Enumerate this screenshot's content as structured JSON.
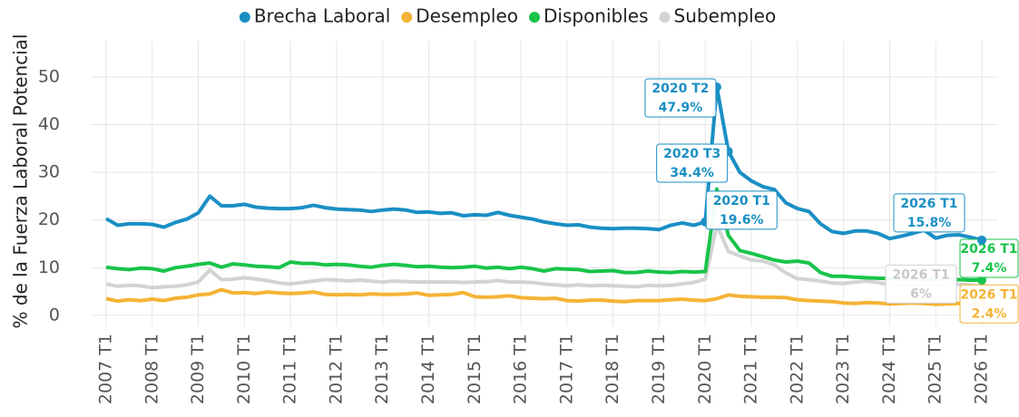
{
  "chart_data": {
    "type": "line",
    "y_label": "% de la Fuerza Laboral Potencial",
    "categories": [
      "2007 T1",
      null,
      null,
      null,
      "2008 T1",
      null,
      null,
      null,
      "2009 T1",
      null,
      null,
      null,
      "2010 T1",
      null,
      null,
      null,
      "2011 T1",
      null,
      null,
      null,
      "2012 T1",
      null,
      null,
      null,
      "2013 T1",
      null,
      null,
      null,
      "2014 T1",
      null,
      null,
      null,
      "2015 T1",
      null,
      null,
      null,
      "2016 T1",
      null,
      null,
      null,
      "2017 T1",
      null,
      null,
      null,
      "2018 T1",
      null,
      null,
      null,
      "2019 T1",
      null,
      null,
      null,
      "2020 T1",
      null,
      null,
      null,
      "2021 T1",
      null,
      null,
      null,
      "2022 T1",
      null,
      null,
      null,
      "2023 T1",
      null,
      null,
      null,
      "2024 T1",
      null,
      null,
      null,
      "2025 T1",
      null,
      null,
      null,
      "2026 T1"
    ],
    "ylim": [
      -2.3,
      57.6
    ],
    "yticks": [
      0,
      10,
      20,
      30,
      40,
      50
    ],
    "grid": true,
    "legend": "top",
    "series": [
      {
        "name": "Brecha Laboral",
        "color": "#1a8fc4",
        "values": [
          20.3,
          18.9,
          19.2,
          19.2,
          19.1,
          18.5,
          19.5,
          20.2,
          21.5,
          25,
          23,
          23,
          23.3,
          22.7,
          22.5,
          22.4,
          22.4,
          22.6,
          23.1,
          22.6,
          22.3,
          22.2,
          22.1,
          21.8,
          22.1,
          22.3,
          22.1,
          21.6,
          21.7,
          21.4,
          21.5,
          20.9,
          21.1,
          21.0,
          21.6,
          21.0,
          20.6,
          20.2,
          19.6,
          19.2,
          18.9,
          19.0,
          18.5,
          18.3,
          18.2,
          18.3,
          18.3,
          18.2,
          18.0,
          18.9,
          19.4,
          18.9,
          19.6,
          47.9,
          34.4,
          30.0,
          28.2,
          27.0,
          26.4,
          23.6,
          22.4,
          21.8,
          19.2,
          17.6,
          17.2,
          17.7,
          17.7,
          17.2,
          16.1,
          16.6,
          17.2,
          17.9,
          16.2,
          16.8,
          16.9,
          16.4,
          15.8
        ],
        "point_labels": [
          null,
          null,
          null,
          null,
          null,
          null,
          null,
          null,
          null,
          null,
          null,
          null,
          null,
          null,
          null,
          null,
          null,
          null,
          null,
          null,
          null,
          null,
          null,
          null,
          null,
          null,
          null,
          null,
          null,
          null,
          null,
          null,
          null,
          null,
          null,
          null,
          null,
          null,
          null,
          null,
          null,
          null,
          null,
          null,
          null,
          null,
          null,
          null,
          null,
          null,
          null,
          null,
          "2020 T1",
          "2020 T2",
          "2020 T3",
          null,
          null,
          null,
          null,
          null,
          null,
          null,
          null,
          null,
          null,
          null,
          null,
          null,
          null,
          null,
          null,
          null,
          null,
          null,
          null,
          null,
          "2026 T1"
        ],
        "value_labels": [
          null,
          null,
          null,
          null,
          null,
          null,
          null,
          null,
          null,
          null,
          null,
          null,
          null,
          null,
          null,
          null,
          null,
          null,
          null,
          null,
          null,
          null,
          null,
          null,
          null,
          null,
          null,
          null,
          null,
          null,
          null,
          null,
          null,
          null,
          null,
          null,
          null,
          null,
          null,
          null,
          null,
          null,
          null,
          null,
          null,
          null,
          null,
          null,
          null,
          null,
          null,
          null,
          "19.6%",
          "47.9%",
          "34.4%",
          null,
          null,
          null,
          null,
          null,
          null,
          null,
          null,
          null,
          null,
          null,
          null,
          null,
          null,
          null,
          null,
          null,
          null,
          null,
          null,
          null,
          "15.8%"
        ]
      },
      {
        "name": "Desempleo",
        "color": "#f5b335",
        "values": [
          3.5,
          3.0,
          3.3,
          3.1,
          3.4,
          3.1,
          3.6,
          3.8,
          4.3,
          4.5,
          5.4,
          4.7,
          4.8,
          4.6,
          4.9,
          4.7,
          4.6,
          4.7,
          4.9,
          4.4,
          4.3,
          4.4,
          4.3,
          4.5,
          4.4,
          4.4,
          4.5,
          4.7,
          4.2,
          4.3,
          4.4,
          4.8,
          3.9,
          3.8,
          3.9,
          4.1,
          3.7,
          3.6,
          3.5,
          3.6,
          3.1,
          3.0,
          3.2,
          3.2,
          3.0,
          2.9,
          3.1,
          3.1,
          3.1,
          3.3,
          3.4,
          3.2,
          3.1,
          3.5,
          4.3,
          4.0,
          3.9,
          3.8,
          3.8,
          3.7,
          3.3,
          3.1,
          3.0,
          2.9,
          2.6,
          2.5,
          2.7,
          2.6,
          2.4,
          2.5,
          2.6,
          2.5,
          2.3,
          2.4,
          2.5,
          2.5,
          2.4
        ],
        "point_labels": [
          null,
          null,
          null,
          null,
          null,
          null,
          null,
          null,
          null,
          null,
          null,
          null,
          null,
          null,
          null,
          null,
          null,
          null,
          null,
          null,
          null,
          null,
          null,
          null,
          null,
          null,
          null,
          null,
          null,
          null,
          null,
          null,
          null,
          null,
          null,
          null,
          null,
          null,
          null,
          null,
          null,
          null,
          null,
          null,
          null,
          null,
          null,
          null,
          null,
          null,
          null,
          null,
          null,
          null,
          null,
          null,
          null,
          null,
          null,
          null,
          null,
          null,
          null,
          null,
          null,
          null,
          null,
          null,
          null,
          null,
          null,
          null,
          null,
          null,
          null,
          null,
          "2026 T1"
        ],
        "value_labels": [
          null,
          null,
          null,
          null,
          null,
          null,
          null,
          null,
          null,
          null,
          null,
          null,
          null,
          null,
          null,
          null,
          null,
          null,
          null,
          null,
          null,
          null,
          null,
          null,
          null,
          null,
          null,
          null,
          null,
          null,
          null,
          null,
          null,
          null,
          null,
          null,
          null,
          null,
          null,
          null,
          null,
          null,
          null,
          null,
          null,
          null,
          null,
          null,
          null,
          null,
          null,
          null,
          null,
          null,
          null,
          null,
          null,
          null,
          null,
          null,
          null,
          null,
          null,
          null,
          null,
          null,
          null,
          null,
          null,
          null,
          null,
          null,
          null,
          null,
          null,
          null,
          "2.4%"
        ]
      },
      {
        "name": "Disponibles",
        "color": "#18c44a",
        "values": [
          10.1,
          9.8,
          9.6,
          9.9,
          9.8,
          9.3,
          10.0,
          10.3,
          10.7,
          11.0,
          10.1,
          10.8,
          10.6,
          10.3,
          10.2,
          10.0,
          11.2,
          10.9,
          10.9,
          10.6,
          10.7,
          10.6,
          10.3,
          10.1,
          10.5,
          10.7,
          10.5,
          10.2,
          10.3,
          10.1,
          10.0,
          10.1,
          10.3,
          9.9,
          10.1,
          9.8,
          10.1,
          9.8,
          9.3,
          9.8,
          9.7,
          9.6,
          9.2,
          9.3,
          9.4,
          9.0,
          9.0,
          9.3,
          9.1,
          9.0,
          9.2,
          9.1,
          9.2,
          26.5,
          16.8,
          13.6,
          13.0,
          12.3,
          11.6,
          11.2,
          11.4,
          11.0,
          9.0,
          8.2,
          8.2,
          8.0,
          7.9,
          7.8,
          7.7,
          7.6,
          7.6,
          7.5,
          7.5,
          7.6,
          7.5,
          7.4,
          7.4
        ],
        "point_labels": [
          null,
          null,
          null,
          null,
          null,
          null,
          null,
          null,
          null,
          null,
          null,
          null,
          null,
          null,
          null,
          null,
          null,
          null,
          null,
          null,
          null,
          null,
          null,
          null,
          null,
          null,
          null,
          null,
          null,
          null,
          null,
          null,
          null,
          null,
          null,
          null,
          null,
          null,
          null,
          null,
          null,
          null,
          null,
          null,
          null,
          null,
          null,
          null,
          null,
          null,
          null,
          null,
          null,
          null,
          null,
          null,
          null,
          null,
          null,
          null,
          null,
          null,
          null,
          null,
          null,
          null,
          null,
          null,
          null,
          null,
          null,
          null,
          null,
          null,
          null,
          null,
          "2026 T1"
        ],
        "value_labels": [
          null,
          null,
          null,
          null,
          null,
          null,
          null,
          null,
          null,
          null,
          null,
          null,
          null,
          null,
          null,
          null,
          null,
          null,
          null,
          null,
          null,
          null,
          null,
          null,
          null,
          null,
          null,
          null,
          null,
          null,
          null,
          null,
          null,
          null,
          null,
          null,
          null,
          null,
          null,
          null,
          null,
          null,
          null,
          null,
          null,
          null,
          null,
          null,
          null,
          null,
          null,
          null,
          null,
          null,
          null,
          null,
          null,
          null,
          null,
          null,
          null,
          null,
          null,
          null,
          null,
          null,
          null,
          null,
          null,
          null,
          null,
          null,
          null,
          null,
          null,
          null,
          "7.4%"
        ]
      },
      {
        "name": "Subempleo",
        "color": "#d3d3d3",
        "values": [
          6.6,
          6.1,
          6.3,
          6.2,
          5.8,
          6.0,
          6.1,
          6.4,
          7.0,
          9.5,
          7.5,
          7.6,
          7.9,
          7.6,
          7.3,
          6.8,
          6.6,
          6.9,
          7.2,
          7.5,
          7.4,
          7.2,
          7.4,
          7.2,
          7.0,
          7.2,
          7.1,
          7.0,
          7.0,
          7.0,
          7.0,
          6.9,
          7.0,
          7.1,
          7.3,
          7.0,
          7.0,
          6.9,
          6.6,
          6.4,
          6.2,
          6.4,
          6.2,
          6.3,
          6.2,
          6.1,
          6.0,
          6.3,
          6.2,
          6.3,
          6.6,
          6.9,
          7.6,
          19.0,
          13.4,
          12.5,
          11.6,
          11.4,
          10.6,
          8.9,
          7.7,
          7.5,
          7.2,
          6.8,
          6.7,
          7.0,
          7.2,
          6.9,
          6.4,
          6.2,
          6.4,
          6.5,
          6.3,
          6.6,
          6.5,
          6.4,
          6.0
        ],
        "point_labels": [
          null,
          null,
          null,
          null,
          null,
          null,
          null,
          null,
          null,
          null,
          null,
          null,
          null,
          null,
          null,
          null,
          null,
          null,
          null,
          null,
          null,
          null,
          null,
          null,
          null,
          null,
          null,
          null,
          null,
          null,
          null,
          null,
          null,
          null,
          null,
          null,
          null,
          null,
          null,
          null,
          null,
          null,
          null,
          null,
          null,
          null,
          null,
          null,
          null,
          null,
          null,
          null,
          null,
          null,
          null,
          null,
          null,
          null,
          null,
          null,
          null,
          null,
          null,
          null,
          null,
          null,
          null,
          null,
          null,
          null,
          null,
          null,
          null,
          null,
          null,
          null,
          "2026 T1"
        ],
        "value_labels": [
          null,
          null,
          null,
          null,
          null,
          null,
          null,
          null,
          null,
          null,
          null,
          null,
          null,
          null,
          null,
          null,
          null,
          null,
          null,
          null,
          null,
          null,
          null,
          null,
          null,
          null,
          null,
          null,
          null,
          null,
          null,
          null,
          null,
          null,
          null,
          null,
          null,
          null,
          null,
          null,
          null,
          null,
          null,
          null,
          null,
          null,
          null,
          null,
          null,
          null,
          null,
          null,
          null,
          null,
          null,
          null,
          null,
          null,
          null,
          null,
          null,
          null,
          null,
          null,
          null,
          null,
          null,
          null,
          null,
          null,
          null,
          null,
          null,
          null,
          null,
          null,
          "6%"
        ]
      }
    ]
  }
}
